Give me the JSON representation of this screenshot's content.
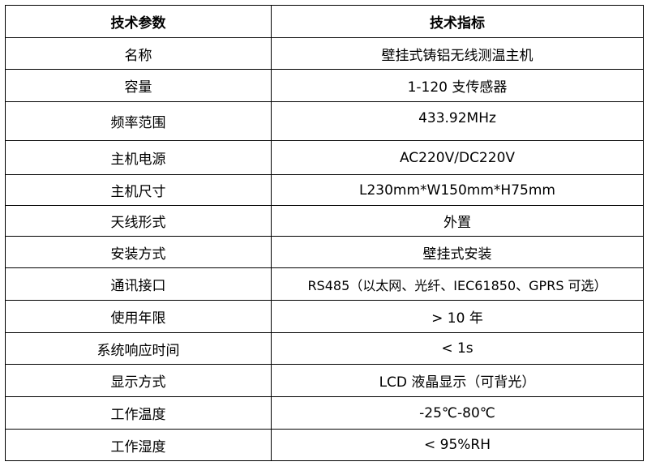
{
  "header": {
    "param": "技术参数",
    "spec": "技术指标"
  },
  "rows": [
    {
      "param": "名称",
      "spec": "壁挂式铸铝无线测温主机"
    },
    {
      "param": "容量",
      "spec": "1-120 支传感器"
    },
    {
      "param": "频率范围",
      "spec": "433.92MHz"
    },
    {
      "param": "主机电源",
      "spec": "AC220V/DC220V"
    },
    {
      "param": "主机尺寸",
      "spec": "L230mm*W150mm*H75mm"
    },
    {
      "param": "天线形式",
      "spec": "外置"
    },
    {
      "param": "安装方式",
      "spec": "壁挂式安装"
    },
    {
      "param": "通讯接口",
      "spec": "RS485（以太网、光纤、IEC61850、GPRS 可选）"
    },
    {
      "param": "使用年限",
      "spec": "> 10 年"
    },
    {
      "param": "系统响应时间",
      "spec": "< 1s"
    },
    {
      "param": "显示方式",
      "spec": "LCD 液晶显示（可背光）"
    },
    {
      "param": "工作温度",
      "spec": "-25℃-80℃"
    },
    {
      "param": "工作湿度",
      "spec": "< 95%RH"
    }
  ]
}
